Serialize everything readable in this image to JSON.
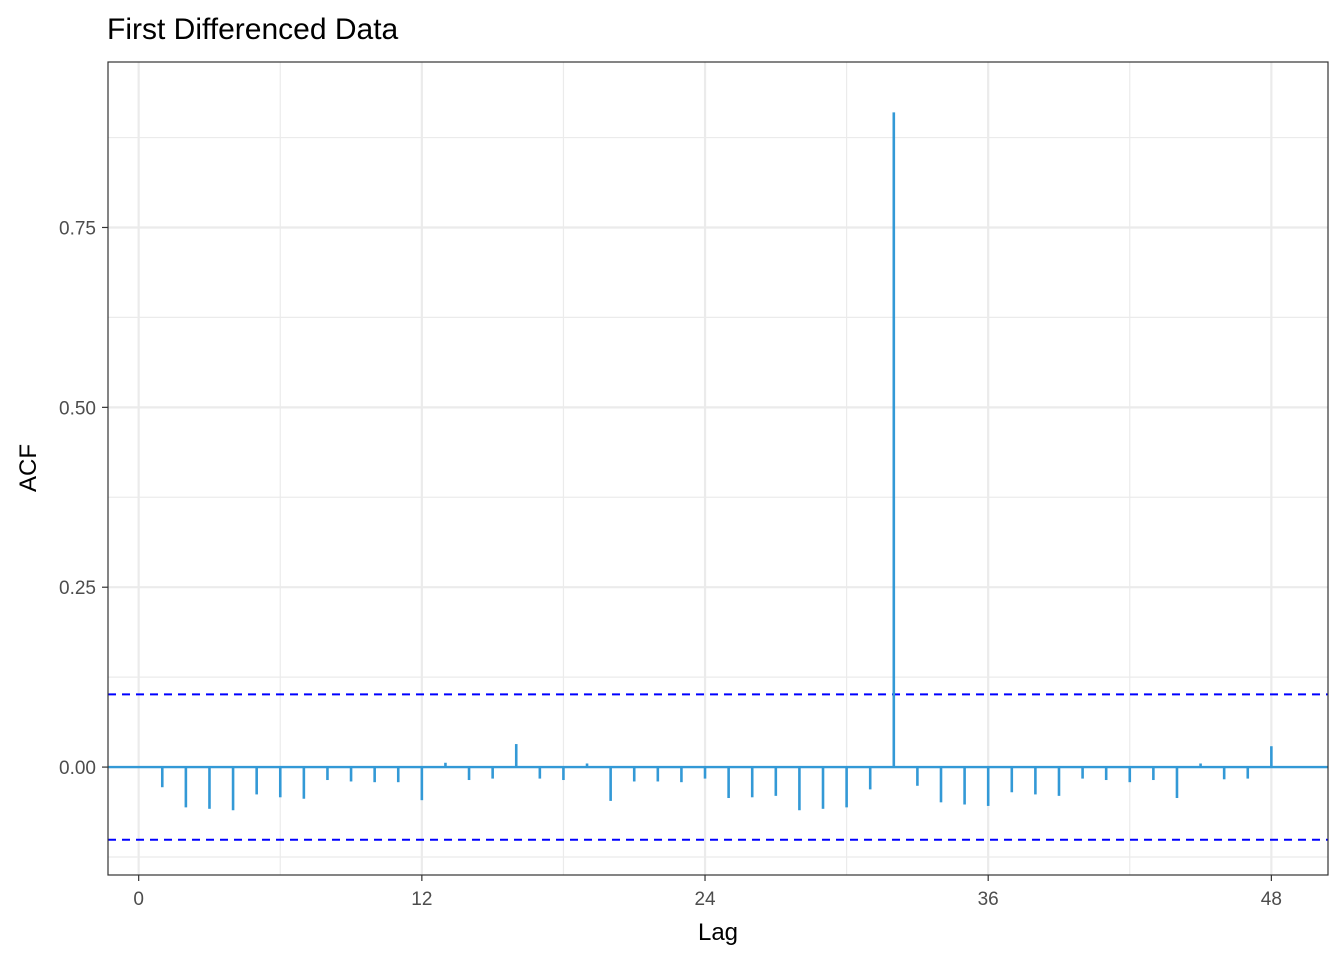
{
  "chart_data": {
    "type": "bar",
    "title": "First Differenced Data",
    "xlabel": "Lag",
    "ylabel": "ACF",
    "x_ticks": [
      0,
      12,
      24,
      36,
      48
    ],
    "x_tick_labels": [
      "0",
      "12",
      "24",
      "36",
      "48"
    ],
    "y_ticks": [
      0.0,
      0.25,
      0.5,
      0.75
    ],
    "y_tick_labels": [
      "0.00",
      "0.25",
      "0.50",
      "0.75"
    ],
    "xlim": [
      -1.3,
      50.4
    ],
    "ylim": [
      -0.15,
      0.98
    ],
    "grid": true,
    "confidence_bounds": [
      0.101,
      -0.101
    ],
    "colors": {
      "bars": "#3399d6",
      "zero_line": "#3399d6",
      "confidence": "#0000ff",
      "grid": "#ebebeb",
      "panel_border": "#333333"
    },
    "lags": [
      1,
      2,
      3,
      4,
      5,
      6,
      7,
      8,
      9,
      10,
      11,
      12,
      13,
      14,
      15,
      16,
      17,
      18,
      19,
      20,
      21,
      22,
      23,
      24,
      25,
      26,
      27,
      28,
      29,
      30,
      31,
      32,
      33,
      34,
      35,
      36,
      37,
      38,
      39,
      40,
      41,
      42,
      43,
      44,
      45,
      46,
      47,
      48
    ],
    "values": [
      -0.028,
      -0.056,
      -0.058,
      -0.06,
      -0.038,
      -0.042,
      -0.044,
      -0.018,
      -0.02,
      -0.021,
      -0.021,
      -0.046,
      0.006,
      -0.018,
      -0.016,
      0.032,
      -0.016,
      -0.018,
      0.005,
      -0.047,
      -0.02,
      -0.02,
      -0.021,
      -0.016,
      -0.043,
      -0.042,
      -0.04,
      -0.06,
      -0.058,
      -0.056,
      -0.031,
      0.91,
      -0.026,
      -0.049,
      -0.052,
      -0.054,
      -0.035,
      -0.038,
      -0.04,
      -0.016,
      -0.018,
      -0.021,
      -0.018,
      -0.043,
      0.005,
      -0.017,
      -0.016,
      0.029
    ]
  }
}
